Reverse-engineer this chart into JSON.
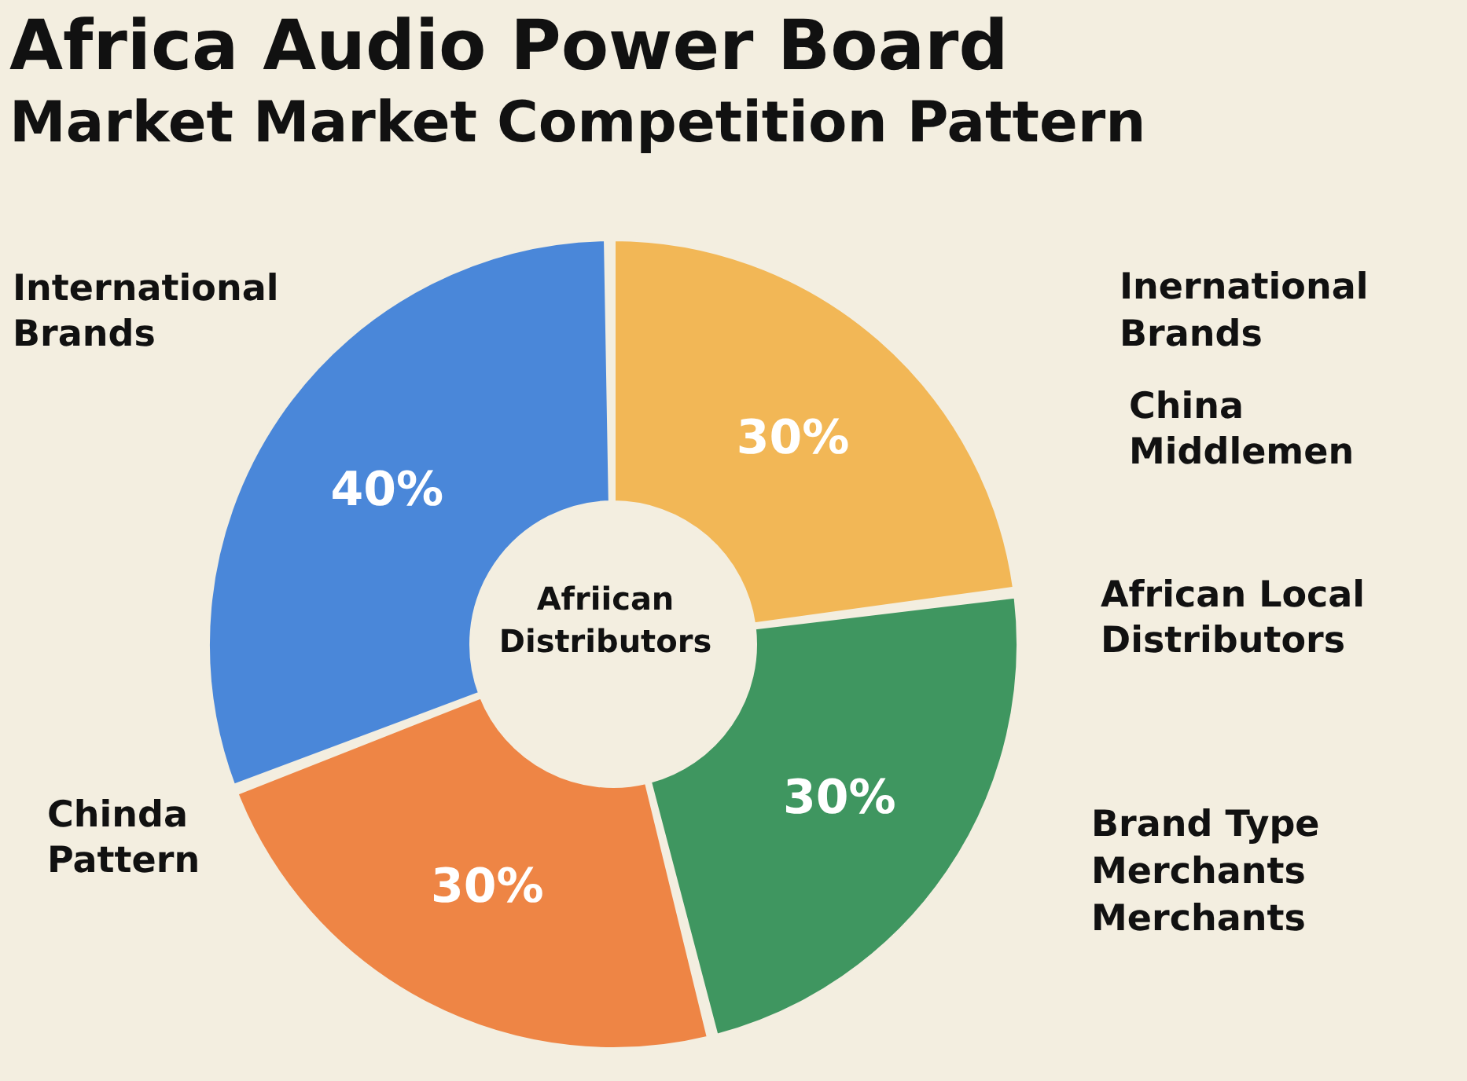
{
  "chart_data": {
    "type": "donut",
    "title": "Africa Audio Power Board\nMarket Market Competition Pattern",
    "categories": [
      "China Middlemen",
      "African Local Distributors",
      "Chinda Pattern",
      "International Brands"
    ],
    "values": [
      30,
      30,
      30,
      40
    ],
    "colors": [
      "#f2b756",
      "#3f9660",
      "#ee8545",
      "#4a87d9"
    ],
    "value_labels": [
      "30%",
      "30%",
      "30%",
      "40%"
    ],
    "annotations": [
      "Afriican Distributors",
      "Inernational Brands",
      "Brand Type Merchants Merchants"
    ]
  }
}
